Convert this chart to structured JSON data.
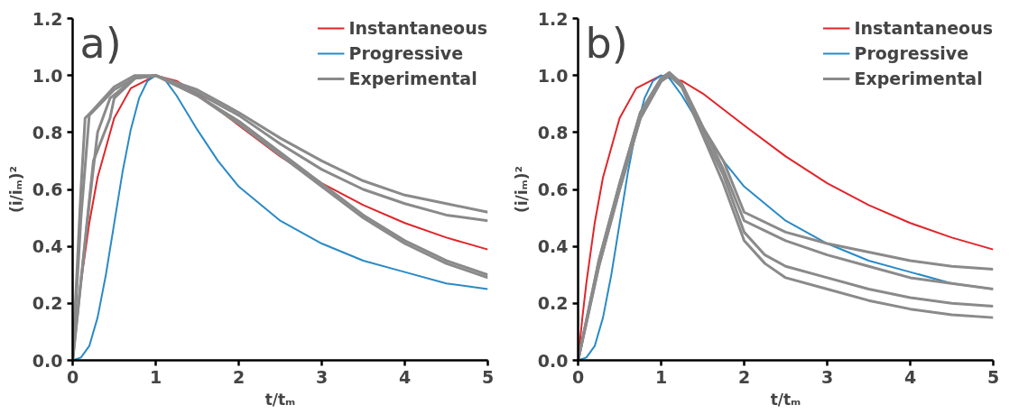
{
  "chart_data": [
    {
      "type": "line",
      "annotations": [
        "a)"
      ],
      "xlabel": "t/tₘ",
      "ylabel": "(i/iₘ)²",
      "xlim": [
        0,
        5
      ],
      "ylim": [
        0,
        1.2
      ],
      "xticks": [
        0,
        1,
        2,
        3,
        4,
        5
      ],
      "yticks": [
        {
          "value": 0,
          "label": "0.0"
        },
        {
          "value": 0.2,
          "label": "0.2"
        },
        {
          "value": 0.4,
          "label": "0.4"
        },
        {
          "value": 0.6,
          "label": "0.6"
        },
        {
          "value": 0.8,
          "label": "0.8"
        },
        {
          "value": 1,
          "label": "1.0"
        },
        {
          "value": 1.2,
          "label": "1.2"
        }
      ],
      "grid": false,
      "legend": "top right",
      "marker": "none",
      "line_style": "solid",
      "series": [
        {
          "name": "Instantaneous",
          "color": "#e0252a",
          "x": [
            0,
            0.05,
            0.1,
            0.2,
            0.3,
            0.5,
            0.7,
            1,
            1.25,
            1.5,
            2,
            2.5,
            3,
            3.5,
            4,
            4.5,
            5
          ],
          "values": [
            0,
            0.145,
            0.272,
            0.482,
            0.642,
            0.85,
            0.955,
            1.0,
            0.981,
            0.937,
            0.825,
            0.716,
            0.622,
            0.545,
            0.482,
            0.431,
            0.389
          ]
        },
        {
          "name": "Progressive",
          "color": "#2a8ac6",
          "x": [
            0,
            0.1,
            0.2,
            0.3,
            0.4,
            0.5,
            0.6,
            0.7,
            0.8,
            0.9,
            1,
            1.1,
            1.25,
            1.5,
            1.75,
            2,
            2.5,
            3,
            3.5,
            4,
            4.5,
            5
          ],
          "values": [
            0,
            0.01,
            0.05,
            0.15,
            0.3,
            0.48,
            0.66,
            0.81,
            0.92,
            0.98,
            1.0,
            0.99,
            0.93,
            0.81,
            0.7,
            0.61,
            0.49,
            0.41,
            0.35,
            0.31,
            0.27,
            0.25
          ]
        },
        {
          "name": "Experimental",
          "color": "#8a8a8a",
          "x": [
            0,
            0.1,
            0.15,
            0.25,
            0.5,
            0.75,
            1,
            1.5,
            2,
            2.5,
            3,
            3.5,
            4,
            4.5,
            5
          ],
          "values": [
            0,
            0.6,
            0.85,
            0.88,
            0.96,
            1.0,
            1.0,
            0.95,
            0.87,
            0.78,
            0.7,
            0.63,
            0.58,
            0.55,
            0.52
          ]
        },
        {
          "color": "#8a8a8a",
          "x": [
            0,
            0.1,
            0.2,
            0.3,
            0.5,
            0.75,
            1,
            1.5,
            2,
            2.5,
            3,
            3.5,
            4,
            4.5,
            5
          ],
          "values": [
            0,
            0.5,
            0.86,
            0.89,
            0.95,
            0.99,
            1.0,
            0.94,
            0.86,
            0.76,
            0.67,
            0.6,
            0.55,
            0.51,
            0.49
          ]
        },
        {
          "color": "#8a8a8a",
          "x": [
            0,
            0.2,
            0.3,
            0.45,
            0.75,
            1,
            1.5,
            2,
            2.5,
            3,
            3.5,
            4,
            4.5,
            5
          ],
          "values": [
            0,
            0.55,
            0.8,
            0.92,
            0.99,
            1.0,
            0.93,
            0.84,
            0.73,
            0.62,
            0.51,
            0.42,
            0.35,
            0.3
          ]
        },
        {
          "color": "#8a8a8a",
          "x": [
            0,
            0.25,
            0.45,
            0.5,
            0.75,
            1,
            1.5,
            2,
            2.5,
            3,
            3.5,
            4,
            4.5,
            5
          ],
          "values": [
            0,
            0.7,
            0.85,
            0.92,
            0.99,
            1.0,
            0.93,
            0.83,
            0.72,
            0.61,
            0.5,
            0.41,
            0.34,
            0.29
          ]
        }
      ]
    },
    {
      "type": "line",
      "annotations": [
        "b)"
      ],
      "xlabel": "t/tₘ",
      "ylabel": "(i/iₘ)²",
      "xlim": [
        0,
        5
      ],
      "ylim": [
        0,
        1.2
      ],
      "xticks": [
        0,
        1,
        2,
        3,
        4,
        5
      ],
      "yticks": [
        {
          "value": 0,
          "label": "0.0"
        },
        {
          "value": 0.2,
          "label": "0.2"
        },
        {
          "value": 0.4,
          "label": "0.4"
        },
        {
          "value": 0.6,
          "label": "0.6"
        },
        {
          "value": 0.8,
          "label": "0.8"
        },
        {
          "value": 1,
          "label": "1.0"
        },
        {
          "value": 1.2,
          "label": "1.2"
        }
      ],
      "grid": false,
      "legend": "top right",
      "marker": "none",
      "line_style": "solid",
      "series": [
        {
          "name": "Instantaneous",
          "color": "#e0252a",
          "x": [
            0,
            0.05,
            0.1,
            0.2,
            0.3,
            0.5,
            0.7,
            1,
            1.25,
            1.5,
            2,
            2.5,
            3,
            3.5,
            4,
            4.5,
            5
          ],
          "values": [
            0,
            0.145,
            0.272,
            0.482,
            0.642,
            0.85,
            0.955,
            1.0,
            0.981,
            0.937,
            0.825,
            0.716,
            0.622,
            0.545,
            0.482,
            0.431,
            0.389
          ]
        },
        {
          "name": "Progressive",
          "color": "#2a8ac6",
          "x": [
            0,
            0.1,
            0.2,
            0.3,
            0.4,
            0.5,
            0.6,
            0.7,
            0.8,
            0.9,
            1,
            1.1,
            1.25,
            1.5,
            1.75,
            2,
            2.5,
            3,
            3.5,
            4,
            4.5,
            5
          ],
          "values": [
            0,
            0.01,
            0.05,
            0.15,
            0.3,
            0.48,
            0.66,
            0.81,
            0.92,
            0.98,
            1.0,
            0.99,
            0.93,
            0.81,
            0.7,
            0.61,
            0.49,
            0.41,
            0.35,
            0.31,
            0.27,
            0.25
          ]
        },
        {
          "name": "Experimental",
          "color": "#8a8a8a",
          "x": [
            0,
            0.25,
            0.5,
            0.75,
            1,
            1.1,
            1.25,
            1.5,
            1.75,
            2,
            2.5,
            3,
            3.5,
            4,
            4.5,
            5
          ],
          "values": [
            0,
            0.35,
            0.62,
            0.87,
            0.99,
            1.01,
            0.97,
            0.82,
            0.7,
            0.52,
            0.45,
            0.41,
            0.38,
            0.35,
            0.33,
            0.32
          ]
        },
        {
          "color": "#8a8a8a",
          "x": [
            0,
            0.25,
            0.5,
            0.75,
            1,
            1.1,
            1.25,
            1.5,
            1.75,
            2,
            2.5,
            3,
            3.5,
            4,
            4.5,
            5
          ],
          "values": [
            0,
            0.35,
            0.62,
            0.87,
            0.99,
            1.01,
            0.97,
            0.82,
            0.67,
            0.49,
            0.42,
            0.37,
            0.33,
            0.29,
            0.27,
            0.25
          ]
        },
        {
          "color": "#8a8a8a",
          "x": [
            0,
            0.25,
            0.5,
            0.75,
            1,
            1.1,
            1.25,
            1.5,
            1.75,
            2,
            2.25,
            2.5,
            3,
            3.5,
            4,
            4.5,
            5
          ],
          "values": [
            0,
            0.33,
            0.6,
            0.85,
            0.98,
            1.0,
            0.96,
            0.8,
            0.65,
            0.45,
            0.37,
            0.33,
            0.29,
            0.25,
            0.22,
            0.2,
            0.19
          ]
        },
        {
          "color": "#8a8a8a",
          "x": [
            0,
            0.25,
            0.5,
            0.75,
            1,
            1.1,
            1.25,
            1.5,
            1.75,
            2,
            2.25,
            2.5,
            3,
            3.5,
            4,
            4.5,
            5
          ],
          "values": [
            0,
            0.33,
            0.6,
            0.85,
            0.98,
            1.0,
            0.96,
            0.79,
            0.62,
            0.42,
            0.34,
            0.29,
            0.25,
            0.21,
            0.18,
            0.16,
            0.15
          ]
        }
      ]
    }
  ]
}
